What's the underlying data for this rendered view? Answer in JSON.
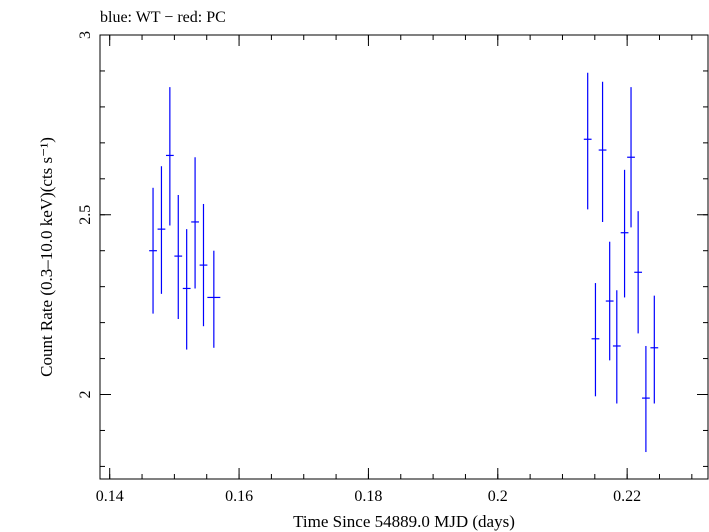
{
  "header_note": "blue: WT − red: PC",
  "chart_data": {
    "type": "scatter",
    "title": "",
    "xlabel": "Time Since 54889.0 MJD (days)",
    "ylabel": "Count Rate (0.3–10.0 keV)(cts s⁻¹)",
    "xlim": [
      0.1385,
      0.2325
    ],
    "ylim": [
      1.765,
      3.0
    ],
    "xticks": [
      {
        "value": 0.14,
        "label": "0.14"
      },
      {
        "value": 0.16,
        "label": "0.16"
      },
      {
        "value": 0.18,
        "label": "0.18"
      },
      {
        "value": 0.2,
        "label": "0.2"
      },
      {
        "value": 0.22,
        "label": "0.22"
      }
    ],
    "yticks": [
      {
        "value": 2.0,
        "label": "2"
      },
      {
        "value": 2.5,
        "label": "2.5"
      },
      {
        "value": 3.0,
        "label": "3"
      }
    ],
    "x_minor_step": 0.005,
    "y_minor_step": 0.1,
    "grid": false,
    "color": "#0000ff",
    "series": [
      {
        "points": [
          {
            "x": 0.1467,
            "y": 2.4,
            "xerr": 0.0006,
            "ylo": 2.225,
            "yhi": 2.575
          },
          {
            "x": 0.148,
            "y": 2.46,
            "xerr": 0.0006,
            "ylo": 2.28,
            "yhi": 2.635
          },
          {
            "x": 0.1493,
            "y": 2.665,
            "xerr": 0.0006,
            "ylo": 2.47,
            "yhi": 2.855
          },
          {
            "x": 0.1506,
            "y": 2.385,
            "xerr": 0.0006,
            "ylo": 2.21,
            "yhi": 2.555
          },
          {
            "x": 0.1519,
            "y": 2.295,
            "xerr": 0.0006,
            "ylo": 2.125,
            "yhi": 2.46
          },
          {
            "x": 0.1532,
            "y": 2.48,
            "xerr": 0.0006,
            "ylo": 2.295,
            "yhi": 2.66
          },
          {
            "x": 0.1545,
            "y": 2.36,
            "xerr": 0.0006,
            "ylo": 2.19,
            "yhi": 2.53
          },
          {
            "x": 0.1561,
            "y": 2.27,
            "xerr": 0.001,
            "ylo": 2.13,
            "yhi": 2.4
          },
          {
            "x": 0.2139,
            "y": 2.71,
            "xerr": 0.0006,
            "ylo": 2.515,
            "yhi": 2.895
          },
          {
            "x": 0.2151,
            "y": 2.155,
            "xerr": 0.0006,
            "ylo": 1.995,
            "yhi": 2.31
          },
          {
            "x": 0.2162,
            "y": 2.68,
            "xerr": 0.0006,
            "ylo": 2.48,
            "yhi": 2.87
          },
          {
            "x": 0.2173,
            "y": 2.26,
            "xerr": 0.0006,
            "ylo": 2.095,
            "yhi": 2.425
          },
          {
            "x": 0.2184,
            "y": 2.135,
            "xerr": 0.0006,
            "ylo": 1.975,
            "yhi": 2.29
          },
          {
            "x": 0.2196,
            "y": 2.45,
            "xerr": 0.0006,
            "ylo": 2.27,
            "yhi": 2.625
          },
          {
            "x": 0.2206,
            "y": 2.66,
            "xerr": 0.0006,
            "ylo": 2.465,
            "yhi": 2.855
          },
          {
            "x": 0.2217,
            "y": 2.34,
            "xerr": 0.0006,
            "ylo": 2.17,
            "yhi": 2.51
          },
          {
            "x": 0.2229,
            "y": 1.99,
            "xerr": 0.0006,
            "ylo": 1.84,
            "yhi": 2.135
          },
          {
            "x": 0.2242,
            "y": 2.13,
            "xerr": 0.0006,
            "ylo": 1.975,
            "yhi": 2.275
          }
        ]
      }
    ]
  }
}
